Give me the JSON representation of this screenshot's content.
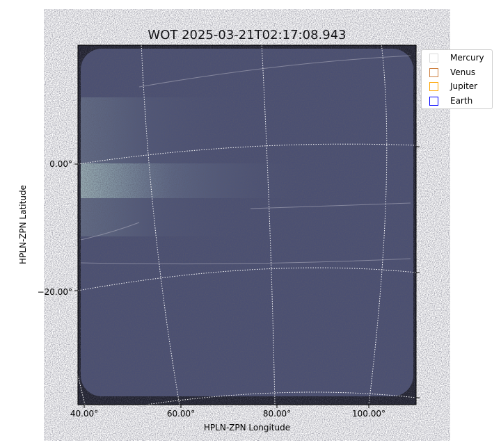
{
  "chart_data": {
    "type": "heatmap",
    "title": "WOT 2025-03-21T02:17:08.943",
    "xlabel": "HPLN-ZPN Longitude",
    "ylabel": "HPLN-ZPN Latitude",
    "xticks": [
      "40.00°",
      "60.00°",
      "80.00°",
      "100.00°"
    ],
    "yticks": [
      "0.00°",
      "−20.00°"
    ],
    "grid": true,
    "colormap": "bone",
    "legend": {
      "placement": "outside-top-right",
      "entries": [
        {
          "label": "Mercury",
          "color": "#d9d9d9"
        },
        {
          "label": "Venus",
          "color": "#cd7f3f"
        },
        {
          "label": "Jupiter",
          "color": "#ffa500"
        },
        {
          "label": "Earth",
          "color": "#0000ff"
        }
      ]
    }
  }
}
